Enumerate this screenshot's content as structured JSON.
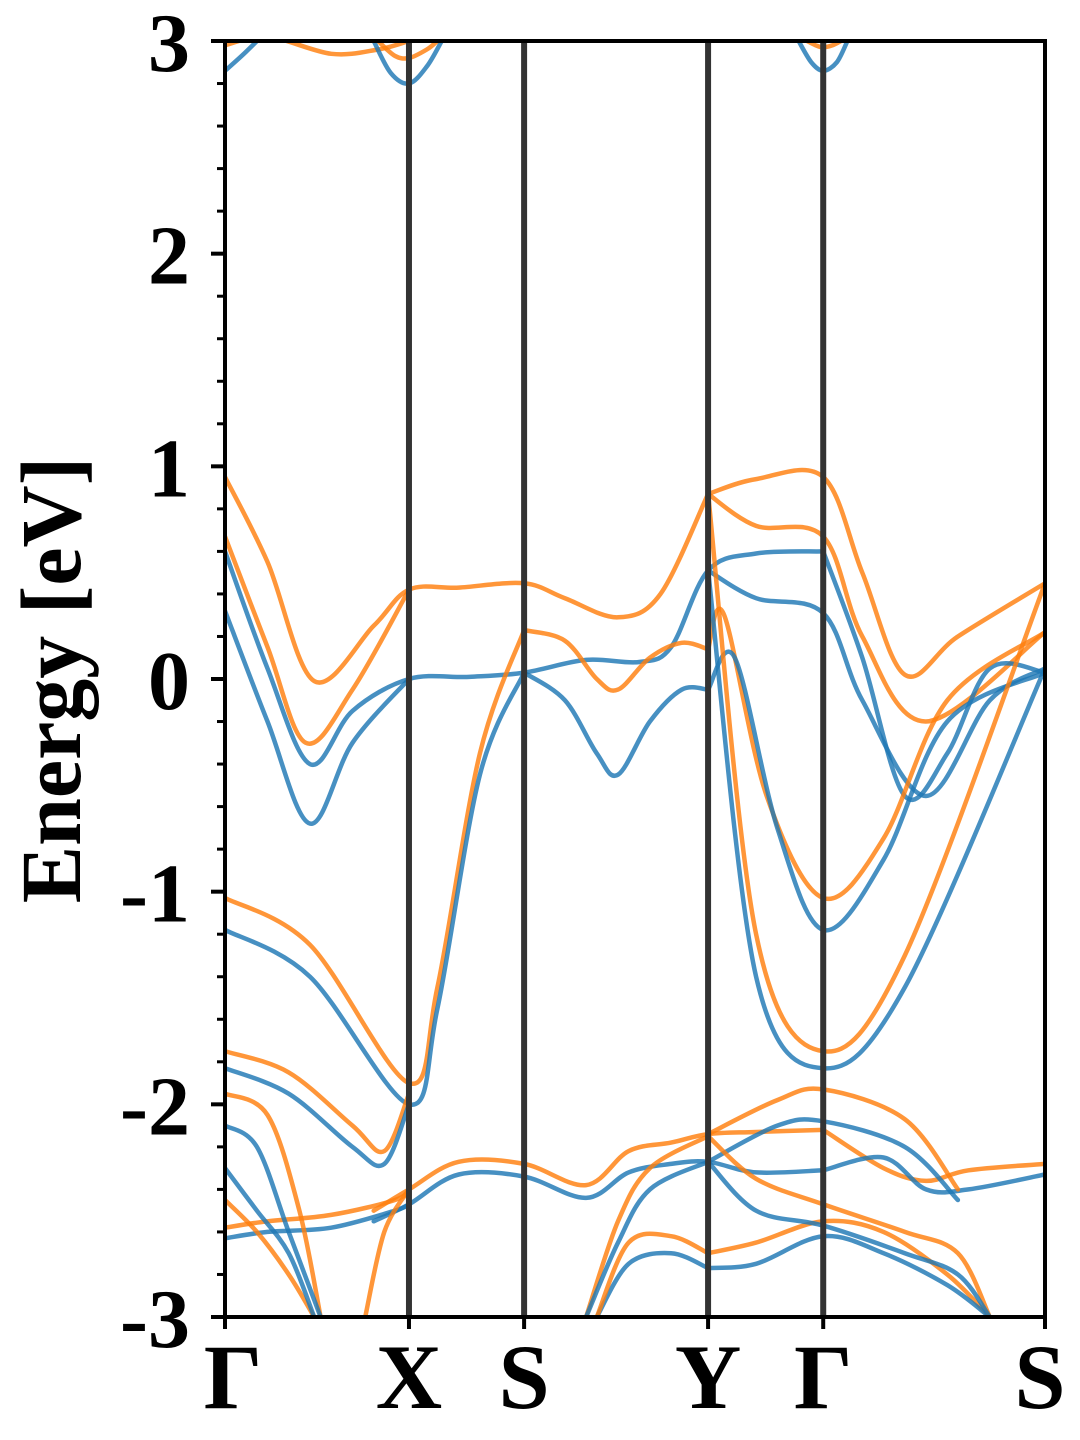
{
  "chart_data": {
    "type": "line",
    "title": "",
    "xlabel": "",
    "ylabel": "Energy [eV]",
    "ylim": [
      -3,
      3
    ],
    "yticks": [
      -3,
      -2,
      -1,
      0,
      1,
      2,
      3
    ],
    "ytick_labels": [
      "-3",
      "-2",
      "-1",
      "0",
      "1",
      "2",
      "3"
    ],
    "x_range": [
      0,
      3.86
    ],
    "kpoints": [
      {
        "label": "Γ",
        "x": 0.0
      },
      {
        "label": "X",
        "x": 0.866
      },
      {
        "label": "S",
        "x": 1.408
      },
      {
        "label": "Y",
        "x": 2.274
      },
      {
        "label": "Γ",
        "x": 2.816
      },
      {
        "label": "S",
        "x": 3.86
      }
    ],
    "grid": false,
    "legend": "none",
    "colors": {
      "blue": "#1f77b4",
      "orange": "#ff7f0e",
      "kline": "#333333"
    },
    "series": [
      {
        "color": "#ff7f0e",
        "x": [
          0.0,
          0.2,
          0.42,
          0.7,
          0.866,
          1.1,
          1.408,
          1.6,
          1.85,
          2.05,
          2.274
        ],
        "y": [
          0.95,
          0.55,
          -0.01,
          0.25,
          0.42,
          0.43,
          0.45,
          0.38,
          0.29,
          0.4,
          0.87
        ]
      },
      {
        "color": "#ff7f0e",
        "x": [
          2.274,
          2.5,
          2.816,
          3.0,
          3.2,
          3.45,
          3.86
        ],
        "y": [
          0.87,
          0.94,
          0.95,
          0.5,
          0.02,
          0.2,
          0.45
        ]
      },
      {
        "color": "#ff7f0e",
        "x": [
          0.0,
          0.2,
          0.38,
          0.6,
          0.866
        ],
        "y": [
          0.67,
          0.15,
          -0.3,
          -0.05,
          0.42
        ]
      },
      {
        "color": "#ff7f0e",
        "x": [
          2.274,
          2.5,
          2.816,
          3.0,
          3.3,
          3.86
        ],
        "y": [
          0.87,
          0.72,
          0.67,
          0.2,
          -0.2,
          0.22
        ]
      },
      {
        "color": "#1f77b4",
        "x": [
          0.0,
          0.2,
          0.4,
          0.6,
          0.866,
          1.15,
          1.408,
          1.7,
          1.95,
          2.1,
          2.274,
          2.5,
          2.816
        ],
        "y": [
          0.6,
          0.05,
          -0.4,
          -0.15,
          0.0,
          0.01,
          0.03,
          0.09,
          0.08,
          0.15,
          0.51,
          0.59,
          0.6
        ]
      },
      {
        "color": "#1f77b4",
        "x": [
          2.816,
          3.0,
          3.2,
          3.4,
          3.6,
          3.86
        ],
        "y": [
          0.6,
          0.1,
          -0.55,
          -0.35,
          0.05,
          0.03
        ]
      },
      {
        "color": "#1f77b4",
        "x": [
          0.0,
          0.2,
          0.4,
          0.6,
          0.866
        ],
        "y": [
          0.32,
          -0.2,
          -0.68,
          -0.3,
          0.0
        ]
      },
      {
        "color": "#1f77b4",
        "x": [
          2.274,
          2.5,
          2.816,
          3.0,
          3.3,
          3.6,
          3.86
        ],
        "y": [
          0.51,
          0.38,
          0.31,
          -0.1,
          -0.55,
          -0.1,
          0.05
        ]
      },
      {
        "color": "#ff7f0e",
        "x": [
          1.408,
          1.6,
          1.75,
          1.85,
          2.0,
          2.15,
          2.274
        ],
        "y": [
          0.23,
          0.18,
          0.0,
          -0.05,
          0.1,
          0.17,
          0.14
        ]
      },
      {
        "color": "#1f77b4",
        "x": [
          1.408,
          1.6,
          1.75,
          1.85,
          2.0,
          2.15,
          2.274
        ],
        "y": [
          0.03,
          -0.1,
          -0.35,
          -0.45,
          -0.2,
          -0.05,
          -0.05
        ]
      },
      {
        "color": "#ff7f0e",
        "x": [
          0.0,
          0.4,
          0.866,
          1.0,
          1.2,
          1.408
        ],
        "y": [
          -1.03,
          -1.25,
          -1.9,
          -1.45,
          -0.35,
          0.23
        ]
      },
      {
        "color": "#1f77b4",
        "x": [
          0.0,
          0.4,
          0.866,
          1.0,
          1.2,
          1.408
        ],
        "y": [
          -1.18,
          -1.4,
          -2.0,
          -1.55,
          -0.45,
          0.03
        ]
      },
      {
        "color": "#ff7f0e",
        "x": [
          2.274,
          2.35,
          2.55,
          2.816,
          3.1,
          3.4,
          3.86
        ],
        "y": [
          0.14,
          0.3,
          -0.55,
          -1.03,
          -0.75,
          -0.1,
          0.22
        ]
      },
      {
        "color": "#1f77b4",
        "x": [
          2.274,
          2.4,
          2.6,
          2.816,
          3.1,
          3.4,
          3.86
        ],
        "y": [
          -0.05,
          0.1,
          -0.7,
          -1.18,
          -0.85,
          -0.2,
          0.03
        ]
      },
      {
        "color": "#ff7f0e",
        "x": [
          2.274,
          2.5,
          2.816,
          3.2,
          3.86
        ],
        "y": [
          0.87,
          -1.2,
          -1.75,
          -1.3,
          0.45
        ]
      },
      {
        "color": "#1f77b4",
        "x": [
          2.274,
          2.5,
          2.816,
          3.2,
          3.86
        ],
        "y": [
          0.51,
          -1.4,
          -1.83,
          -1.45,
          0.05
        ]
      },
      {
        "color": "#ff7f0e",
        "x": [
          0.0,
          0.3,
          0.6,
          0.75,
          0.866
        ],
        "y": [
          -1.75,
          -1.85,
          -2.1,
          -2.22,
          -1.95
        ]
      },
      {
        "color": "#1f77b4",
        "x": [
          0.0,
          0.3,
          0.6,
          0.75,
          0.866
        ],
        "y": [
          -1.83,
          -1.95,
          -2.2,
          -2.28,
          -2.0
        ]
      },
      {
        "color": "#ff7f0e",
        "x": [
          0.7,
          0.866,
          1.1,
          1.408,
          1.7,
          1.9,
          2.1,
          2.274,
          2.5,
          2.816
        ],
        "y": [
          -2.5,
          -2.4,
          -2.27,
          -2.28,
          -2.38,
          -2.22,
          -2.18,
          -2.14,
          -2.13,
          -2.12
        ]
      },
      {
        "color": "#1f77b4",
        "x": [
          0.7,
          0.866,
          1.1,
          1.408,
          1.7,
          1.9,
          2.1,
          2.274,
          2.5,
          2.816
        ],
        "y": [
          -2.55,
          -2.47,
          -2.33,
          -2.34,
          -2.44,
          -2.32,
          -2.28,
          -2.27,
          -2.32,
          -2.31
        ]
      },
      {
        "color": "#ff7f0e",
        "x": [
          2.816,
          3.1,
          3.3,
          3.5,
          3.86
        ],
        "y": [
          -2.12,
          -2.3,
          -2.36,
          -2.31,
          -2.28
        ]
      },
      {
        "color": "#1f77b4",
        "x": [
          2.816,
          3.1,
          3.3,
          3.5,
          3.86
        ],
        "y": [
          -2.31,
          -2.25,
          -2.4,
          -2.4,
          -2.33
        ]
      },
      {
        "color": "#ff7f0e",
        "x": [
          0.0,
          0.2,
          0.5,
          0.8,
          0.866
        ],
        "y": [
          -2.58,
          -2.55,
          -2.52,
          -2.45,
          -2.4
        ]
      },
      {
        "color": "#1f77b4",
        "x": [
          0.0,
          0.2,
          0.5,
          0.8,
          0.866
        ],
        "y": [
          -2.63,
          -2.6,
          -2.58,
          -2.5,
          -2.47
        ]
      },
      {
        "color": "#ff7f0e",
        "x": [
          0.0,
          0.2,
          0.35,
          0.45
        ],
        "y": [
          -1.95,
          -2.05,
          -2.5,
          -3.0
        ]
      },
      {
        "color": "#1f77b4",
        "x": [
          0.0,
          0.15,
          0.3,
          0.45
        ],
        "y": [
          -2.1,
          -2.2,
          -2.6,
          -3.0
        ]
      },
      {
        "color": "#ff7f0e",
        "x": [
          0.0,
          0.15,
          0.3,
          0.42
        ],
        "y": [
          -2.45,
          -2.6,
          -2.8,
          -3.0
        ]
      },
      {
        "color": "#1f77b4",
        "x": [
          0.0,
          0.15,
          0.3,
          0.42
        ],
        "y": [
          -2.3,
          -2.5,
          -2.7,
          -3.0
        ]
      },
      {
        "color": "#ff7f0e",
        "x": [
          0.66,
          0.75,
          0.866
        ],
        "y": [
          -3.0,
          -2.6,
          -2.4
        ]
      },
      {
        "color": "#ff7f0e",
        "x": [
          1.7,
          1.85,
          2.0,
          2.274
        ],
        "y": [
          -3.0,
          -2.55,
          -2.3,
          -2.15
        ]
      },
      {
        "color": "#1f77b4",
        "x": [
          1.7,
          1.85,
          2.0,
          2.274
        ],
        "y": [
          -3.0,
          -2.65,
          -2.4,
          -2.27
        ]
      },
      {
        "color": "#1f77b4",
        "x": [
          1.75,
          1.9,
          2.1,
          2.274
        ],
        "y": [
          -3.0,
          -2.75,
          -2.7,
          -2.77
        ]
      },
      {
        "color": "#ff7f0e",
        "x": [
          1.75,
          1.9,
          2.1,
          2.274
        ],
        "y": [
          -3.0,
          -2.65,
          -2.62,
          -2.7
        ]
      },
      {
        "color": "#ff7f0e",
        "x": [
          2.274,
          2.6,
          2.816,
          3.2,
          3.45
        ],
        "y": [
          -2.14,
          -1.98,
          -1.93,
          -2.07,
          -2.4
        ]
      },
      {
        "color": "#1f77b4",
        "x": [
          2.274,
          2.6,
          2.816,
          3.2,
          3.45
        ],
        "y": [
          -2.27,
          -2.1,
          -2.08,
          -2.2,
          -2.45
        ]
      },
      {
        "color": "#ff7f0e",
        "x": [
          2.274,
          2.5,
          2.816,
          3.1,
          3.4,
          3.6
        ],
        "y": [
          -2.7,
          -2.65,
          -2.55,
          -2.6,
          -2.8,
          -3.0
        ]
      },
      {
        "color": "#1f77b4",
        "x": [
          2.274,
          2.5,
          2.816,
          3.1,
          3.4,
          3.6
        ],
        "y": [
          -2.77,
          -2.75,
          -2.62,
          -2.7,
          -2.85,
          -3.0
        ]
      },
      {
        "color": "#ff7f0e",
        "x": [
          2.274,
          2.5,
          2.816,
          3.2,
          3.45,
          3.6
        ],
        "y": [
          -2.15,
          -2.35,
          -2.47,
          -2.6,
          -2.7,
          -3.0
        ]
      },
      {
        "color": "#1f77b4",
        "x": [
          2.274,
          2.5,
          2.816,
          3.2,
          3.45,
          3.6
        ],
        "y": [
          -2.27,
          -2.5,
          -2.57,
          -2.7,
          -2.8,
          -3.0
        ]
      },
      {
        "color": "#ff7f0e",
        "x": [
          0.0,
          0.2,
          0.5,
          0.72,
          0.866
        ],
        "y": [
          2.98,
          3.02,
          2.94,
          2.96,
          3.0
        ]
      },
      {
        "color": "#1f77b4",
        "x": [
          0.0,
          0.1,
          0.2
        ],
        "y": [
          2.86,
          2.95,
          3.05
        ]
      },
      {
        "color": "#1f77b4",
        "x": [
          0.7,
          0.78,
          0.866,
          0.95,
          1.02
        ],
        "y": [
          3.0,
          2.85,
          2.8,
          2.88,
          3.0
        ]
      },
      {
        "color": "#ff7f0e",
        "x": [
          0.72,
          0.8,
          0.866,
          0.95,
          1.0
        ],
        "y": [
          3.0,
          2.93,
          2.92,
          2.96,
          3.0
        ]
      },
      {
        "color": "#1f77b4",
        "x": [
          2.7,
          2.76,
          2.816,
          2.88,
          2.93
        ],
        "y": [
          3.0,
          2.9,
          2.86,
          2.9,
          3.0
        ]
      },
      {
        "color": "#ff7f0e",
        "x": [
          2.74,
          2.78,
          2.816,
          2.86,
          2.9
        ],
        "y": [
          3.0,
          2.98,
          2.97,
          2.98,
          3.0
        ]
      }
    ]
  }
}
